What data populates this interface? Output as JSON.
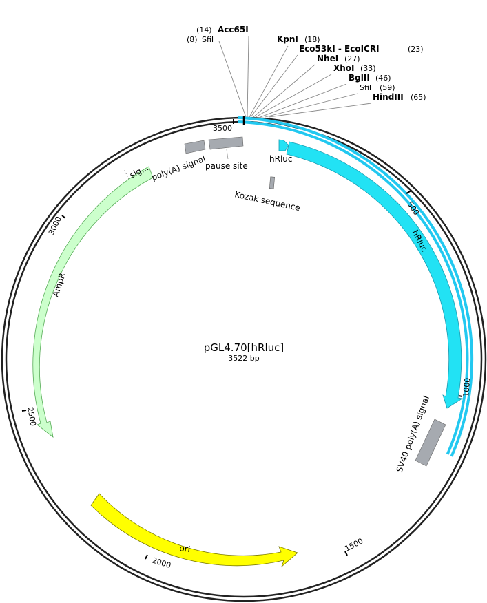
{
  "plasmid": {
    "name": "pGL4.70[hRluc]",
    "length_label": "3522 bp",
    "length_bp": 3522
  },
  "restriction_sites": [
    {
      "pos_label": "(14)",
      "name": "Acc65I",
      "bold": true
    },
    {
      "pos_label": "(8)",
      "name": "SfiI",
      "bold": false
    },
    {
      "name": "KpnI",
      "pos_label": "(18)",
      "bold": true
    },
    {
      "name": "Eco53kI - EcoICRI",
      "pos_label": "(23)",
      "bold": true
    },
    {
      "name": "NheI",
      "pos_label": "(27)",
      "bold": true
    },
    {
      "name": "XhoI",
      "pos_label": "(33)",
      "bold": true
    },
    {
      "name": "BglII",
      "pos_label": "(46)",
      "bold": true
    },
    {
      "name": "SfiI",
      "pos_label": "(59)",
      "bold": false
    },
    {
      "name": "HindIII",
      "pos_label": "(65)",
      "bold": true
    }
  ],
  "ticks": [
    "500",
    "1000",
    "1500",
    "2000",
    "2500",
    "3000",
    "3500"
  ],
  "features": {
    "hrluc_small": "hRluc",
    "hrluc_main": "hRluc",
    "kozak": "Kozak sequence",
    "sv40": "SV40 poly(A) signal",
    "ori": "ori",
    "ampr": "AmpR",
    "ampr_sig": "sig...",
    "polya": "poly(A) signal",
    "pause": "pause site"
  },
  "colors": {
    "backbone": "#222222",
    "hrluc": "#22d8f0",
    "ori": "#ffff00",
    "ampr": "#ccffcc",
    "grey_feature": "#a6aab0"
  }
}
